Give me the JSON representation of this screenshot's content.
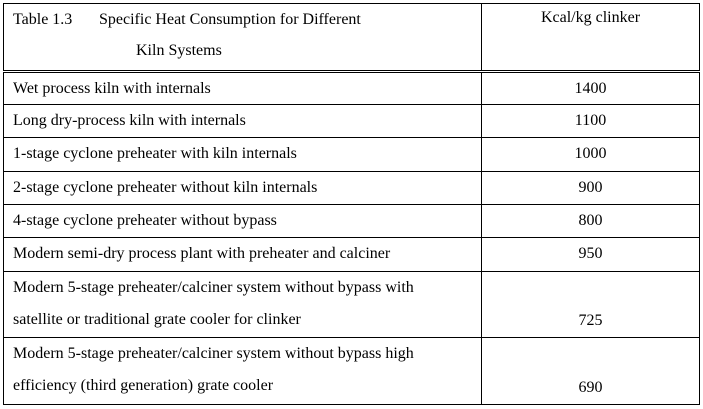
{
  "table": {
    "title_label": "Table 1.3",
    "title_line1": "Specific Heat Consumption for Different",
    "title_line2": "Kiln Systems",
    "unit_header": "Kcal/kg clinker",
    "rows": [
      {
        "lines": [
          "Wet process kiln with internals"
        ],
        "value": "1400"
      },
      {
        "lines": [
          "Long dry-process kiln with internals"
        ],
        "value": "1100"
      },
      {
        "lines": [
          "1-stage cyclone preheater with kiln internals"
        ],
        "value": "1000"
      },
      {
        "lines": [
          "2-stage cyclone preheater without kiln internals"
        ],
        "value": "900"
      },
      {
        "lines": [
          "4-stage cyclone preheater without bypass"
        ],
        "value": "800"
      },
      {
        "lines": [
          "Modern semi-dry process plant with preheater and calciner"
        ],
        "value": "950"
      },
      {
        "lines": [
          "Modern 5-stage preheater/calciner system without bypass with",
          "satellite or traditional grate cooler for clinker"
        ],
        "value": "725"
      },
      {
        "lines": [
          "Modern 5-stage preheater/calciner system without bypass high",
          "efficiency (third generation) grate cooler"
        ],
        "value": "690"
      }
    ]
  }
}
